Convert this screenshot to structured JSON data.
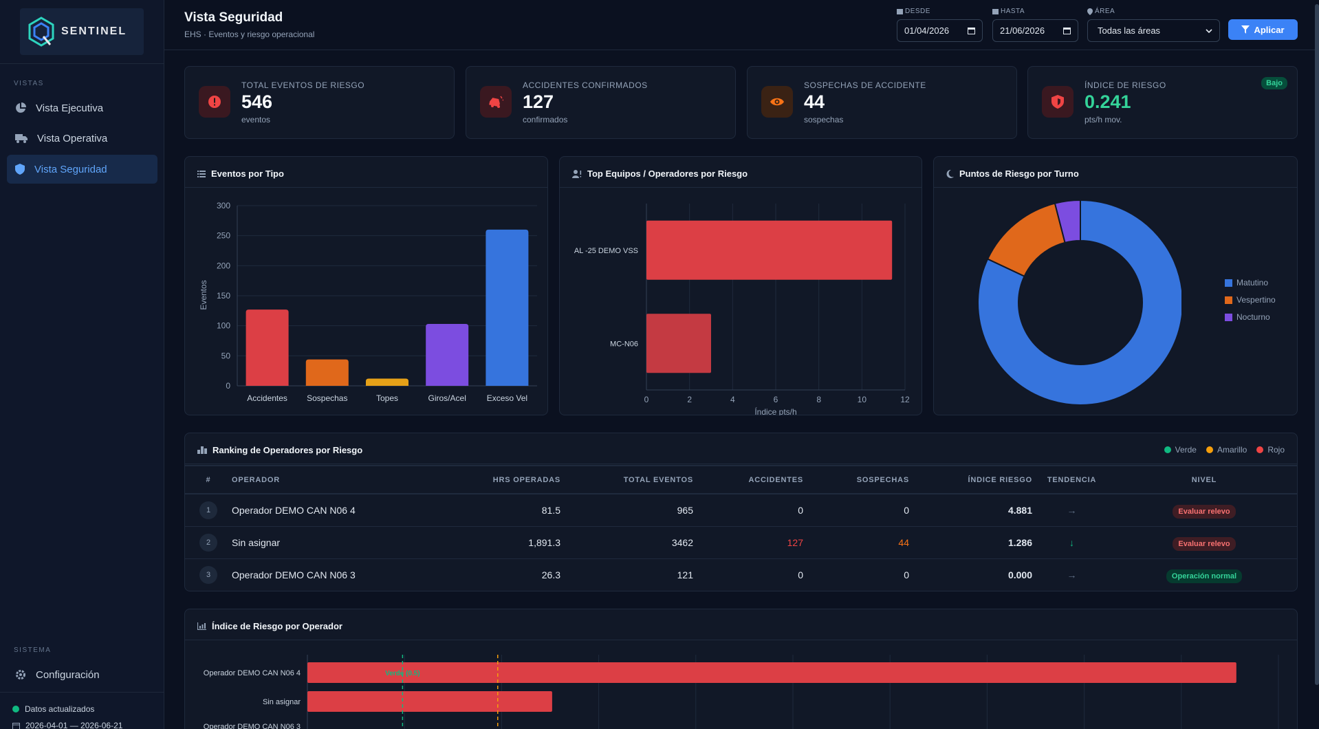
{
  "app": {
    "logo_text": "SENTINEL"
  },
  "sidebar": {
    "section_views": "VISTAS",
    "items": [
      {
        "label": "Vista Ejecutiva",
        "icon": "chart-pie-icon",
        "active": false
      },
      {
        "label": "Vista Operativa",
        "icon": "truck-icon",
        "active": false
      },
      {
        "label": "Vista Seguridad",
        "icon": "shield-icon",
        "active": true
      }
    ],
    "section_system": "SISTEMA",
    "settings_label": "Configuración",
    "status_text": "Datos actualizados",
    "range_text": "2026-04-01 — 2026-06-21"
  },
  "header": {
    "title": "Vista Seguridad",
    "subtitle": "EHS · Eventos y riesgo operacional",
    "desde_label": "DESDE",
    "desde_value": "01/04/2026",
    "hasta_label": "HASTA",
    "hasta_value": "21/06/2026",
    "area_label": "ÁREA",
    "area_value": "Todas las áreas",
    "apply_label": "Aplicar"
  },
  "kpis": [
    {
      "label": "TOTAL EVENTOS DE RIESGO",
      "value": "546",
      "unit": "eventos",
      "icon": "alert-circle-icon",
      "color": "#ef4444"
    },
    {
      "label": "ACCIDENTES CONFIRMADOS",
      "value": "127",
      "unit": "confirmados",
      "icon": "car-crash-icon",
      "color": "#ef4444"
    },
    {
      "label": "SOSPECHAS DE ACCIDENTE",
      "value": "44",
      "unit": "sospechas",
      "icon": "eye-icon",
      "color": "#f97316"
    },
    {
      "label": "ÍNDICE DE RIESGO",
      "value": "0.241",
      "unit": "pts/h mov.",
      "icon": "shield-icon",
      "color": "#ef4444",
      "badge": "Bajo"
    }
  ],
  "panels": {
    "eventos": "Eventos por Tipo",
    "top": "Top Equipos / Operadores por Riesgo",
    "turnos": "Puntos de Riesgo por Turno",
    "ranking": "Ranking de Operadores por Riesgo",
    "indice": "Índice de Riesgo por Operador"
  },
  "chart_data": [
    {
      "type": "bar",
      "categories": [
        "Accidentes",
        "Sospechas",
        "Topes",
        "Giros/Acel",
        "Exceso Vel"
      ],
      "values": [
        127,
        44,
        12,
        103,
        260
      ],
      "colors": [
        "#dc3f45",
        "#e0681b",
        "#e6a118",
        "#7c4de0",
        "#3674dd"
      ],
      "ylabel": "Eventos",
      "ylim": [
        0,
        300
      ],
      "yticks": [
        0,
        50,
        100,
        150,
        200,
        250,
        300
      ],
      "grid": true
    },
    {
      "type": "bar",
      "orientation": "horizontal",
      "categories": [
        "AL -25 DEMO VSS",
        "MC-N06"
      ],
      "values": [
        11.4,
        3.0
      ],
      "colors": [
        "#dc3f45",
        "#c43a42"
      ],
      "xlabel": "Índice pts/h",
      "xlim": [
        0,
        12
      ],
      "xticks": [
        0,
        2,
        4,
        6,
        8,
        10,
        12
      ],
      "grid": true
    },
    {
      "type": "pie",
      "style": "donut",
      "labels": [
        "Matutino",
        "Vespertino",
        "Nocturno"
      ],
      "values": [
        82,
        14,
        4
      ],
      "colors": [
        "#3674dd",
        "#e0681b",
        "#7c4de0"
      ],
      "legend": "right"
    },
    {
      "type": "bar",
      "orientation": "horizontal",
      "categories": [
        "Operador DEMO CAN N06 4",
        "Sin asignar",
        "Operador DEMO CAN N06 3"
      ],
      "values": [
        4.881,
        1.286,
        0.0
      ],
      "threshold_labels": [
        "Verde (0.5)"
      ],
      "thresholds": [
        0.5,
        1.0
      ],
      "threshold_colors": [
        "#10b981",
        "#f59e0b"
      ],
      "xlim": [
        0,
        5
      ],
      "grid": true
    }
  ],
  "ranking": {
    "legend": [
      {
        "label": "Verde",
        "color": "#10b981"
      },
      {
        "label": "Amarillo",
        "color": "#f59e0b"
      },
      {
        "label": "Rojo",
        "color": "#ef4444"
      }
    ],
    "columns": [
      "#",
      "OPERADOR",
      "HRS OPERADAS",
      "TOTAL EVENTOS",
      "ACCIDENTES",
      "SOSPECHAS",
      "ÍNDICE RIESGO",
      "TENDENCIA",
      "NIVEL"
    ],
    "rows": [
      {
        "rank": "1",
        "operador": "Operador DEMO CAN N06 4",
        "hrs": "81.5",
        "total": "965",
        "accidentes": "0",
        "sospechas": "0",
        "indice": "4.881",
        "tendencia": "→",
        "nivel": "Evaluar relevo",
        "nivel_tone": "red"
      },
      {
        "rank": "2",
        "operador": "Sin asignar",
        "hrs": "1,891.3",
        "total": "3462",
        "accidentes": "127",
        "sospechas": "44",
        "indice": "1.286",
        "tendencia": "↓",
        "nivel": "Evaluar relevo",
        "nivel_tone": "red"
      },
      {
        "rank": "3",
        "operador": "Operador DEMO CAN N06 3",
        "hrs": "26.3",
        "total": "121",
        "accidentes": "0",
        "sospechas": "0",
        "indice": "0.000",
        "tendencia": "→",
        "nivel": "Operación normal",
        "nivel_tone": "green"
      }
    ]
  }
}
